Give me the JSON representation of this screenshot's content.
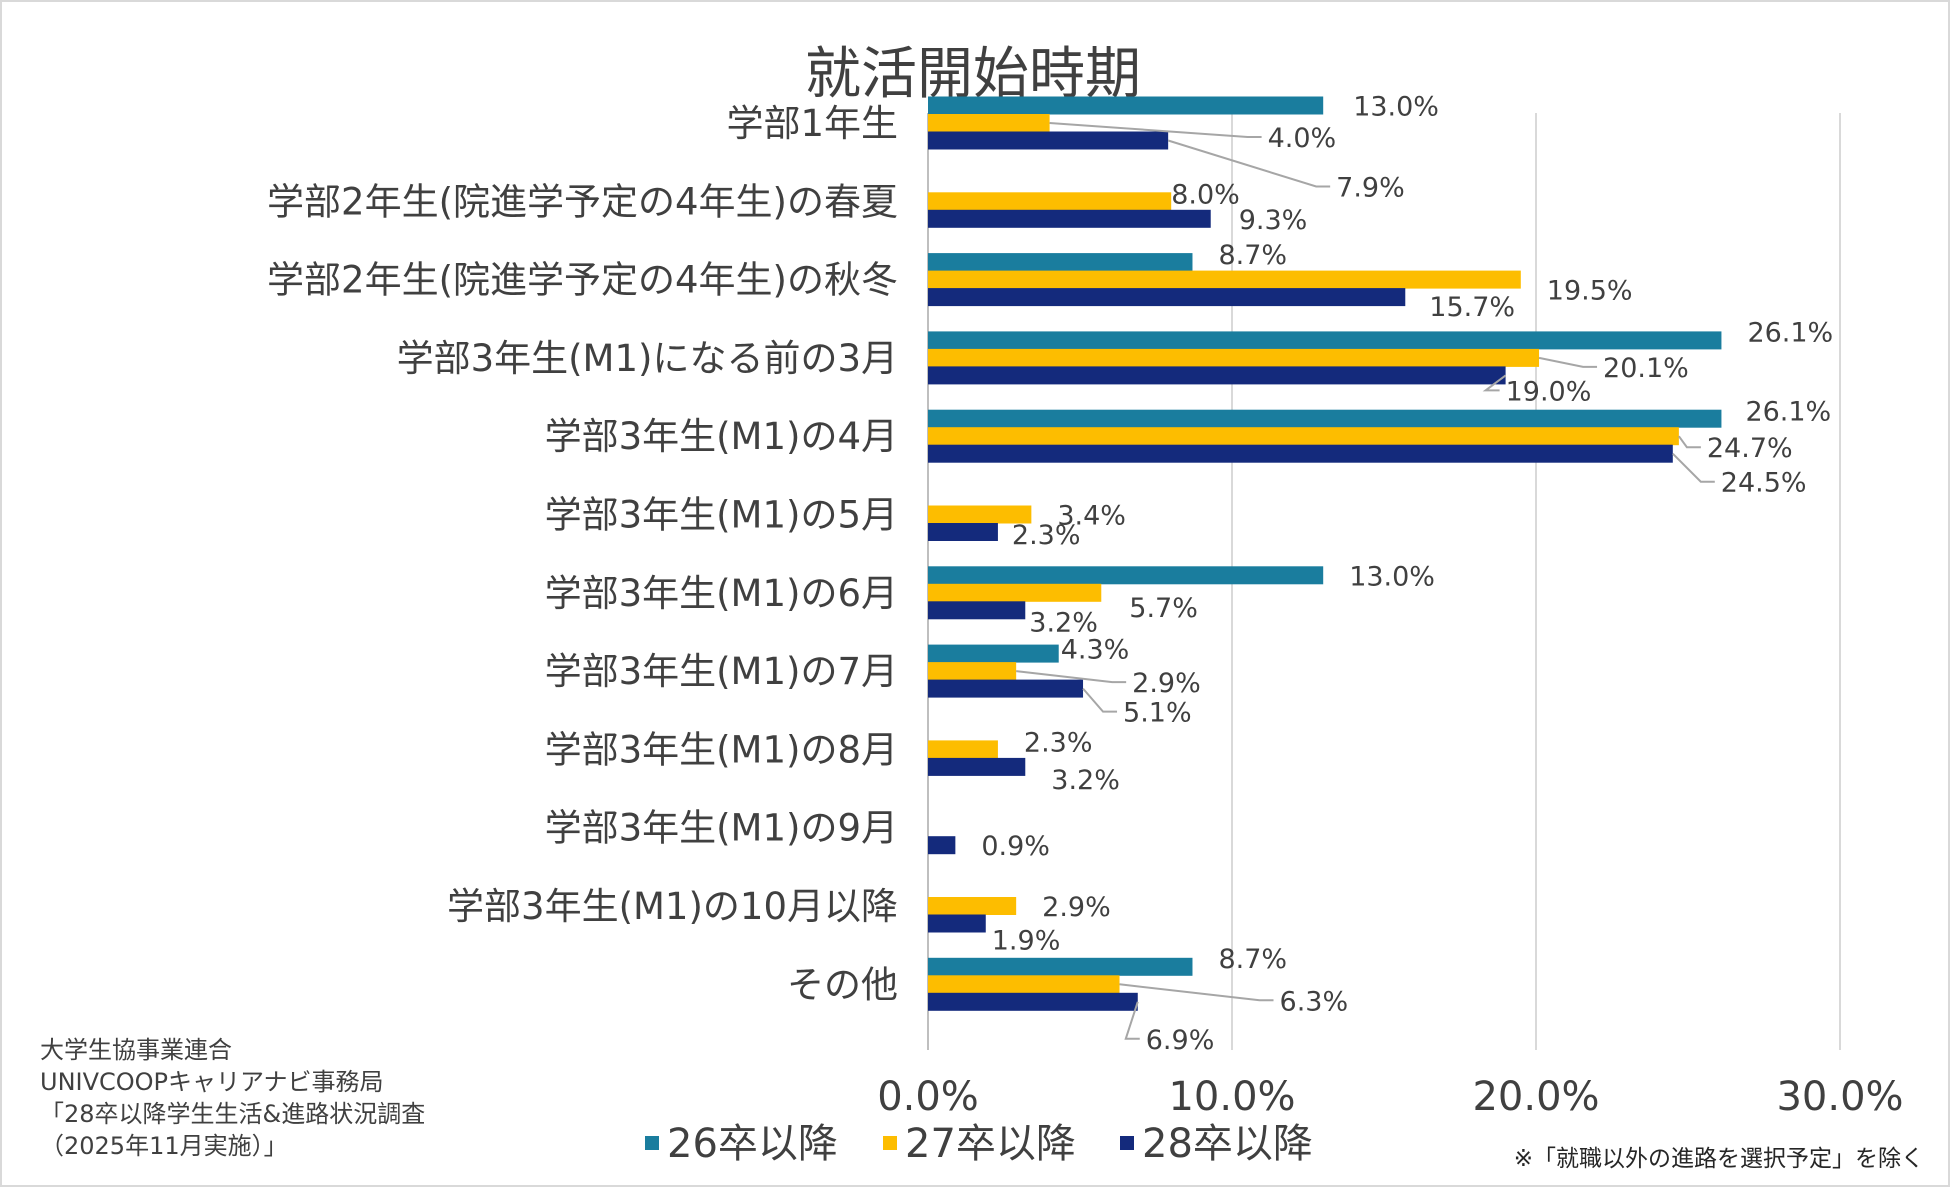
{
  "chart_data": {
    "type": "bar",
    "orientation": "horizontal",
    "title": "就活開始時期",
    "categories": [
      "学部1年生",
      "学部2年生(院進学予定の4年生)の春夏",
      "学部2年生(院進学予定の4年生)の秋冬",
      "学部3年生(M1)になる前の3月",
      "学部3年生(M1)の4月",
      "学部3年生(M1)の5月",
      "学部3年生(M1)の6月",
      "学部3年生(M1)の7月",
      "学部3年生(M1)の8月",
      "学部3年生(M1)の9月",
      "学部3年生(M1)の10月以降",
      "その他"
    ],
    "series": [
      {
        "name": "26卒以降",
        "color": "#1a7d9e",
        "values": [
          13.0,
          null,
          8.7,
          26.1,
          26.1,
          null,
          13.0,
          4.3,
          null,
          null,
          null,
          8.7
        ],
        "labels": [
          "13.0%",
          null,
          "8.7%",
          "26.1%",
          "26.1%",
          null,
          "13.0%",
          "4.3%",
          null,
          null,
          null,
          "8.7%"
        ]
      },
      {
        "name": "27卒以降",
        "color": "#fdbd00",
        "values": [
          4.0,
          8.0,
          19.5,
          20.1,
          24.7,
          3.4,
          5.7,
          2.9,
          2.3,
          null,
          2.9,
          6.3
        ],
        "labels": [
          "4.0%",
          "8.0%",
          "19.5%",
          "20.1%",
          "24.7%",
          "3.4%",
          "5.7%",
          "2.9%",
          "2.3%",
          null,
          "2.9%",
          "6.3%"
        ]
      },
      {
        "name": "28卒以降",
        "color": "#142a7c",
        "values": [
          7.9,
          9.3,
          15.7,
          19.0,
          24.5,
          2.3,
          3.2,
          5.1,
          3.2,
          0.9,
          1.9,
          6.9
        ],
        "labels": [
          "7.9%",
          "9.3%",
          "15.7%",
          "19.0%",
          "24.5%",
          "2.3%",
          "3.2%",
          "5.1%",
          "3.2%",
          "0.9%",
          "1.9%",
          "6.9%"
        ]
      }
    ],
    "x_ticks": [
      "0.0%",
      "10.0%",
      "20.0%",
      "30.0%"
    ],
    "xlim": [
      0,
      30
    ],
    "grid": true,
    "legend": "bottom"
  },
  "source": {
    "lines": [
      "大学生協事業連合",
      "UNIVCOOPキャリアナビ事務局",
      "「28卒以降学生生活&進路状況調査",
      "（2025年11月実施）」"
    ]
  },
  "note": "※「就職以外の進路を選択予定」を除く"
}
